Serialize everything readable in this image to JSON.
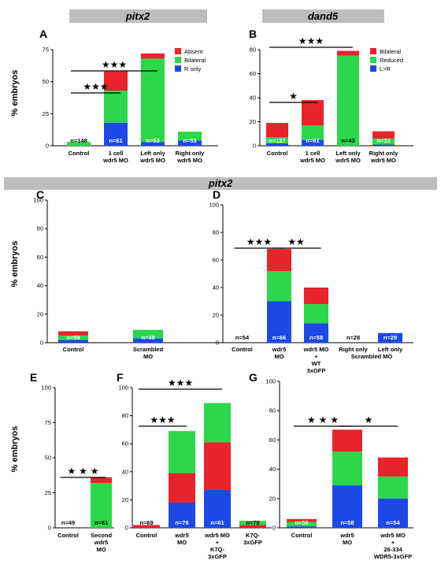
{
  "headers": {
    "top_left": "pitx2",
    "top_right": "dand5",
    "middle": "pitx2"
  },
  "y_axis_label": "% embryos",
  "colors": {
    "red": "#e8232b",
    "green": "#2cd849",
    "blue": "#1c49e6",
    "header_bg": "#bdbdbd"
  },
  "chart_data": [
    {
      "id": "A",
      "type": "bar",
      "stacked": true,
      "ylim": [
        0,
        75
      ],
      "yticks": [
        0,
        25,
        50,
        75
      ],
      "ylabel": "% embryos",
      "legend": [
        {
          "label": "Absent",
          "color": "red"
        },
        {
          "label": "Bilateral",
          "color": "green"
        },
        {
          "label": "R only",
          "color": "blue"
        }
      ],
      "legend_position": "top-right",
      "categories": [
        [
          "Control"
        ],
        [
          "1 cell",
          "wdr5 MO"
        ],
        [
          "Left only",
          "wdr5 MO"
        ],
        [
          "Right only",
          "wdr5 MO"
        ]
      ],
      "segments": [
        [
          {
            "color": "green",
            "value": 3
          }
        ],
        [
          {
            "color": "blue",
            "value": 18
          },
          {
            "color": "green",
            "value": 25
          },
          {
            "color": "red",
            "value": 15
          }
        ],
        [
          {
            "color": "blue",
            "value": 3
          },
          {
            "color": "green",
            "value": 65
          },
          {
            "color": "red",
            "value": 4
          }
        ],
        [
          {
            "color": "blue",
            "value": 4
          },
          {
            "color": "green",
            "value": 7
          }
        ]
      ],
      "n_labels": [
        "n=148",
        "n=61",
        "n=53",
        "n=53"
      ],
      "significance": [
        {
          "from": 0,
          "to": 1,
          "stars": "★★★"
        },
        {
          "from": 0,
          "to": 2,
          "stars": "★★★"
        }
      ]
    },
    {
      "id": "B",
      "type": "bar",
      "stacked": true,
      "ylim": [
        0,
        80
      ],
      "yticks": [
        0,
        20,
        40,
        60,
        80
      ],
      "legend": [
        {
          "label": "Bilateral",
          "color": "red"
        },
        {
          "label": "Reduced",
          "color": "green"
        },
        {
          "label": "L>R",
          "color": "blue"
        }
      ],
      "legend_position": "top-right",
      "categories": [
        [
          "Control"
        ],
        [
          "1 cell",
          "wdr5 MO"
        ],
        [
          "Left only",
          "wdr5 MO"
        ],
        [
          "Right only",
          "wdr5 MO"
        ]
      ],
      "segments": [
        [
          {
            "color": "blue",
            "value": 2
          },
          {
            "color": "green",
            "value": 5
          },
          {
            "color": "red",
            "value": 12
          }
        ],
        [
          {
            "color": "blue",
            "value": 5
          },
          {
            "color": "green",
            "value": 12
          },
          {
            "color": "red",
            "value": 21
          }
        ],
        [
          {
            "color": "green",
            "value": 75
          },
          {
            "color": "red",
            "value": 4
          }
        ],
        [
          {
            "color": "blue",
            "value": 1
          },
          {
            "color": "green",
            "value": 5
          },
          {
            "color": "red",
            "value": 6
          }
        ]
      ],
      "n_labels": [
        "n=137",
        "n=61",
        "n=43",
        "n=33"
      ],
      "significance": [
        {
          "from": 0,
          "to": 1,
          "stars": "★"
        },
        {
          "from": 0,
          "to": 2,
          "stars": "★★★"
        }
      ]
    },
    {
      "id": "C",
      "type": "bar",
      "stacked": true,
      "ylim": [
        0,
        100
      ],
      "yticks": [
        0,
        20,
        40,
        60,
        80,
        100
      ],
      "ylabel": "% embryos",
      "categories": [
        [
          "Control"
        ],
        [
          "Scrambled",
          "MO"
        ]
      ],
      "segments": [
        [
          {
            "color": "blue",
            "value": 2
          },
          {
            "color": "green",
            "value": 3
          },
          {
            "color": "red",
            "value": 3
          }
        ],
        [
          {
            "color": "blue",
            "value": 3
          },
          {
            "color": "green",
            "value": 6
          }
        ]
      ],
      "n_labels": [
        "n=59",
        "n=49"
      ],
      "significance": []
    },
    {
      "id": "D",
      "type": "bar",
      "stacked": true,
      "ylim": [
        0,
        100
      ],
      "yticks": [
        0,
        20,
        40,
        60,
        80,
        100
      ],
      "categories": [
        [
          "Control"
        ],
        [
          "wdr5",
          "MO"
        ],
        [
          "wdr5 MO",
          "+",
          "WT",
          "3xGFP"
        ],
        [
          "Right only"
        ],
        [
          "Left only"
        ]
      ],
      "extra_label": "Scrambled MO",
      "segments": [
        [],
        [
          {
            "color": "blue",
            "value": 30
          },
          {
            "color": "green",
            "value": 22
          },
          {
            "color": "red",
            "value": 16
          }
        ],
        [
          {
            "color": "blue",
            "value": 14
          },
          {
            "color": "green",
            "value": 14
          },
          {
            "color": "red",
            "value": 12
          }
        ],
        [],
        [
          {
            "color": "blue",
            "value": 7
          }
        ]
      ],
      "n_labels": [
        "n=54",
        "n=66",
        "n=58",
        "n=28",
        "n=29"
      ],
      "significance": [
        {
          "from": 0,
          "to": 1,
          "stars": "★★★"
        },
        {
          "from": 1,
          "to": 2,
          "stars": "★★"
        }
      ]
    },
    {
      "id": "E",
      "type": "bar",
      "stacked": true,
      "ylim": [
        0,
        100
      ],
      "yticks": [
        0,
        25,
        50,
        75,
        100
      ],
      "ylabel": "% embryos",
      "categories": [
        [
          "Control"
        ],
        [
          "Second",
          "wdr5",
          "MO"
        ]
      ],
      "segments": [
        [],
        [
          {
            "color": "green",
            "value": 32
          },
          {
            "color": "red",
            "value": 4
          }
        ]
      ],
      "n_labels": [
        "n=49",
        "n=61"
      ],
      "significance": [
        {
          "from": 0,
          "to": 1,
          "stars": "★ ★ ★"
        }
      ]
    },
    {
      "id": "F",
      "type": "bar",
      "stacked": true,
      "ylim": [
        0,
        100
      ],
      "yticks": [
        0,
        20,
        40,
        60,
        80,
        100
      ],
      "categories": [
        [
          "Control"
        ],
        [
          "wdr5",
          "MO"
        ],
        [
          "wdr5 MO",
          "+",
          "K7Q-",
          "3xGFP"
        ],
        [
          "K7Q-",
          "3xGFP"
        ]
      ],
      "segments": [
        [
          {
            "color": "red",
            "value": 2
          }
        ],
        [
          {
            "color": "blue",
            "value": 18
          },
          {
            "color": "red",
            "value": 21
          },
          {
            "color": "green",
            "value": 30
          }
        ],
        [
          {
            "color": "blue",
            "value": 27
          },
          {
            "color": "red",
            "value": 34
          },
          {
            "color": "green",
            "value": 28
          }
        ],
        [
          {
            "color": "red",
            "value": 2
          },
          {
            "color": "green",
            "value": 3
          }
        ]
      ],
      "n_labels": [
        "n=69",
        "n=76",
        "n=61",
        "n=78"
      ],
      "significance": [
        {
          "from": 0,
          "to": 1,
          "stars": "★★★"
        },
        {
          "from": 0,
          "to": 2,
          "stars": "★★★"
        }
      ]
    },
    {
      "id": "G",
      "type": "bar",
      "stacked": true,
      "ylim": [
        0,
        100
      ],
      "yticks": [
        0,
        20,
        40,
        60,
        80,
        100
      ],
      "categories": [
        [
          "Control"
        ],
        [
          "wdr5",
          "MO"
        ],
        [
          "wdr5 MO",
          "+",
          "26-334",
          "WDR5-3xGFP"
        ]
      ],
      "segments": [
        [
          {
            "color": "blue",
            "value": 1
          },
          {
            "color": "green",
            "value": 3
          },
          {
            "color": "red",
            "value": 2
          }
        ],
        [
          {
            "color": "blue",
            "value": 29
          },
          {
            "color": "green",
            "value": 23
          },
          {
            "color": "red",
            "value": 15
          }
        ],
        [
          {
            "color": "blue",
            "value": 20
          },
          {
            "color": "green",
            "value": 15
          },
          {
            "color": "red",
            "value": 13
          }
        ]
      ],
      "n_labels": [
        "n=56",
        "n=58",
        "n=54"
      ],
      "significance": [
        {
          "from": 0,
          "to": 1,
          "stars": "★ ★ ★"
        },
        {
          "from": 1,
          "to": 2,
          "stars": "★"
        }
      ]
    }
  ]
}
